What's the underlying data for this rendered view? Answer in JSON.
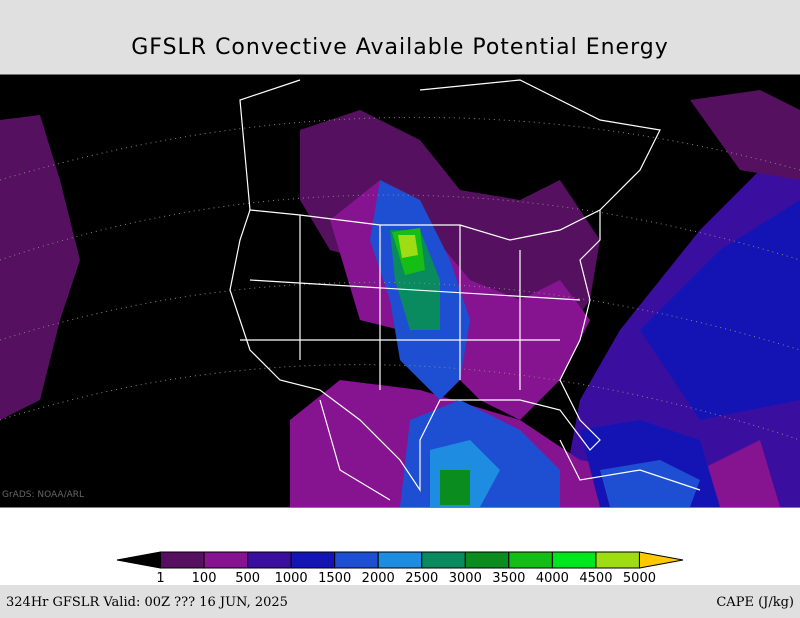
{
  "header": {
    "title": "GFSLR Convective Available Potential Energy"
  },
  "map": {
    "watermark": "GrADS: NOAA/ARL"
  },
  "colorbar": {
    "colors": [
      "#000000",
      "#55105f",
      "#86138f",
      "#3a0fa0",
      "#1414b4",
      "#1e4fd2",
      "#1e8ce0",
      "#0a8a5f",
      "#0a8c1e",
      "#14be14",
      "#00e61e",
      "#a0dc14",
      "#ffc800"
    ],
    "labels": [
      "1",
      "100",
      "500",
      "1000",
      "1500",
      "2000",
      "2500",
      "3000",
      "3500",
      "4000",
      "4500",
      "5000"
    ]
  },
  "footer": {
    "left": "324Hr GFSLR Valid: 00Z ??? 16 JUN, 2025",
    "right": "CAPE (J/kg)"
  }
}
